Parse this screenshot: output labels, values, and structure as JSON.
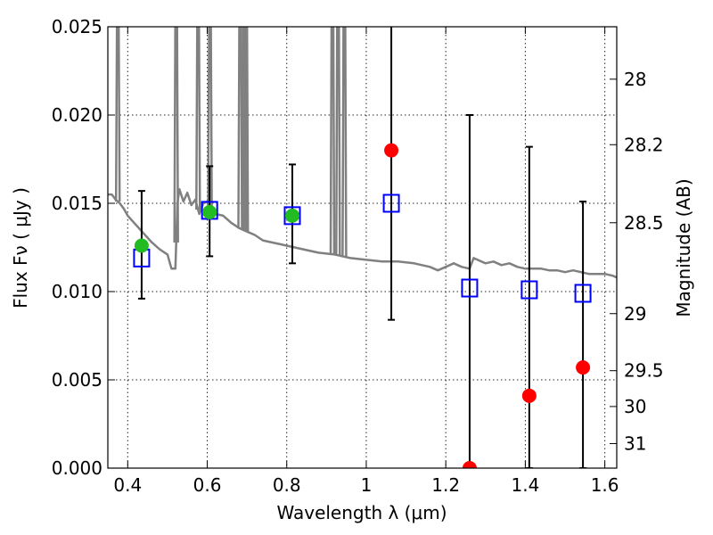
{
  "chart_data": {
    "type": "scatter",
    "xlabel": "Wavelength  λ (μm)",
    "ylabel": "Flux  Fν  ( μJy )",
    "ylabel_right": "Magnitude (AB)",
    "xlim": [
      0.35,
      1.63
    ],
    "ylim": [
      0.0,
      0.025
    ],
    "grid": true,
    "x_ticks": [
      {
        "value": 0.4,
        "label": "0.4"
      },
      {
        "value": 0.6,
        "label": "0.6"
      },
      {
        "value": 0.8,
        "label": "0.8"
      },
      {
        "value": 1.0,
        "label": "1"
      },
      {
        "value": 1.2,
        "label": "1.2"
      },
      {
        "value": 1.4,
        "label": "1.4"
      },
      {
        "value": 1.6,
        "label": "1.6"
      }
    ],
    "y_ticks": [
      {
        "value": 0.0,
        "label": "0.000"
      },
      {
        "value": 0.005,
        "label": "0.005"
      },
      {
        "value": 0.01,
        "label": "0.010"
      },
      {
        "value": 0.015,
        "label": "0.015"
      },
      {
        "value": 0.02,
        "label": "0.020"
      },
      {
        "value": 0.025,
        "label": "0.025"
      }
    ],
    "mag_ticks": [
      {
        "value": 0.02203,
        "label": "28"
      },
      {
        "value": 0.01832,
        "label": "28.2"
      },
      {
        "value": 0.0139,
        "label": "28.5"
      },
      {
        "value": 0.00875,
        "label": "29"
      },
      {
        "value": 0.00552,
        "label": "29.5"
      },
      {
        "value": 0.00349,
        "label": "30"
      },
      {
        "value": 0.00139,
        "label": "31"
      }
    ],
    "series": [
      {
        "kind": "template_spectrum",
        "color": "#808080",
        "points": [
          [
            0.35,
            0.0155
          ],
          [
            0.36,
            0.0155
          ],
          [
            0.37,
            0.0152
          ],
          [
            0.38,
            0.015
          ],
          [
            0.39,
            0.0147
          ],
          [
            0.4,
            0.0143
          ],
          [
            0.42,
            0.0138
          ],
          [
            0.44,
            0.0133
          ],
          [
            0.46,
            0.0128
          ],
          [
            0.48,
            0.0124
          ],
          [
            0.5,
            0.0121
          ],
          [
            0.51,
            0.0113
          ],
          [
            0.52,
            0.0113
          ],
          [
            0.525,
            0.015
          ],
          [
            0.53,
            0.0158
          ],
          [
            0.54,
            0.0151
          ],
          [
            0.55,
            0.0156
          ],
          [
            0.56,
            0.0149
          ],
          [
            0.57,
            0.0152
          ],
          [
            0.58,
            0.0144
          ],
          [
            0.59,
            0.015
          ],
          [
            0.6,
            0.0151
          ],
          [
            0.61,
            0.0146
          ],
          [
            0.62,
            0.0144
          ],
          [
            0.64,
            0.0143
          ],
          [
            0.66,
            0.0139
          ],
          [
            0.68,
            0.0136
          ],
          [
            0.7,
            0.0134
          ],
          [
            0.72,
            0.0132
          ],
          [
            0.74,
            0.0129
          ],
          [
            0.76,
            0.0128
          ],
          [
            0.78,
            0.0127
          ],
          [
            0.8,
            0.0126
          ],
          [
            0.84,
            0.0124
          ],
          [
            0.88,
            0.0122
          ],
          [
            0.92,
            0.0121
          ],
          [
            0.96,
            0.0119
          ],
          [
            1.0,
            0.0118
          ],
          [
            1.04,
            0.0117
          ],
          [
            1.08,
            0.0117
          ],
          [
            1.12,
            0.0116
          ],
          [
            1.16,
            0.0114
          ],
          [
            1.18,
            0.0112
          ],
          [
            1.2,
            0.0114
          ],
          [
            1.22,
            0.0116
          ],
          [
            1.24,
            0.0114
          ],
          [
            1.26,
            0.0113
          ],
          [
            1.27,
            0.0119
          ],
          [
            1.28,
            0.0118
          ],
          [
            1.3,
            0.0116
          ],
          [
            1.32,
            0.0117
          ],
          [
            1.34,
            0.0115
          ],
          [
            1.36,
            0.0116
          ],
          [
            1.38,
            0.0114
          ],
          [
            1.4,
            0.0113
          ],
          [
            1.42,
            0.0113
          ],
          [
            1.44,
            0.0113
          ],
          [
            1.46,
            0.0112
          ],
          [
            1.48,
            0.0112
          ],
          [
            1.5,
            0.0111
          ],
          [
            1.52,
            0.0112
          ],
          [
            1.54,
            0.0111
          ],
          [
            1.56,
            0.011
          ],
          [
            1.58,
            0.011
          ],
          [
            1.6,
            0.011
          ],
          [
            1.62,
            0.0109
          ],
          [
            1.63,
            0.0108
          ]
        ],
        "spikes": [
          0.375,
          0.522,
          0.577,
          0.607,
          0.683,
          0.693,
          0.698,
          0.915,
          0.929,
          0.945
        ]
      },
      {
        "kind": "model_photometry",
        "marker": "open-square",
        "color": "#0000ff",
        "points": [
          {
            "x": 0.435,
            "y": 0.0119
          },
          {
            "x": 0.606,
            "y": 0.0146
          },
          {
            "x": 0.814,
            "y": 0.0143
          },
          {
            "x": 1.063,
            "y": 0.015
          },
          {
            "x": 1.26,
            "y": 0.0102
          },
          {
            "x": 1.41,
            "y": 0.0101
          },
          {
            "x": 1.545,
            "y": 0.0099
          }
        ]
      },
      {
        "kind": "detections",
        "marker": "filled-circle",
        "color": "#22bb22",
        "points": [
          {
            "x": 0.435,
            "y": 0.0126,
            "err_low": 0.0096,
            "err_high": 0.0157
          },
          {
            "x": 0.606,
            "y": 0.0145,
            "err_low": 0.012,
            "err_high": 0.0171
          },
          {
            "x": 0.814,
            "y": 0.0143,
            "err_low": 0.0116,
            "err_high": 0.0172
          }
        ]
      },
      {
        "kind": "low_snr",
        "marker": "filled-circle",
        "color": "#ff0000",
        "points": [
          {
            "x": 1.063,
            "y": 0.018,
            "err_low": 0.0084,
            "err_high": 0.0253
          },
          {
            "x": 1.26,
            "y": 0.0,
            "err_low": 0.0,
            "err_high": 0.02
          },
          {
            "x": 1.41,
            "y": 0.0041,
            "err_low": 0.0,
            "err_high": 0.0182
          },
          {
            "x": 1.545,
            "y": 0.0057,
            "err_low": 0.0,
            "err_high": 0.0151
          }
        ]
      }
    ]
  }
}
